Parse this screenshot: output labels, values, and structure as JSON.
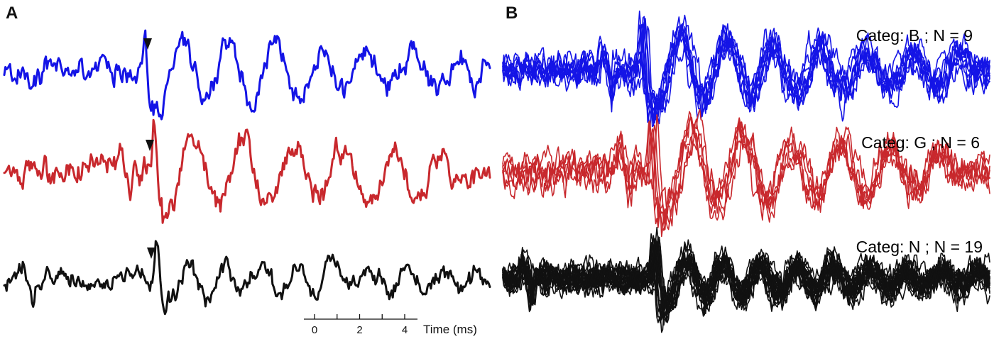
{
  "panels": {
    "left_label": "A",
    "right_label": "B"
  },
  "colors": {
    "B": "#1414e6",
    "G": "#c8282d",
    "N": "#111111",
    "axis": "#111111"
  },
  "categories": [
    {
      "key": "B",
      "label": "Categ: B ; N  = 9"
    },
    {
      "key": "G",
      "label": "Categ: G ; N  =  6"
    },
    {
      "key": "N",
      "label": "Categ: N ; N  = 19"
    }
  ],
  "time_axis": {
    "label": "Time (ms)",
    "ticks": [
      {
        "value": 0,
        "label": "0"
      },
      {
        "value": 1,
        "label": ""
      },
      {
        "value": 2,
        "label": "2"
      },
      {
        "value": 3,
        "label": ""
      },
      {
        "value": 4,
        "label": "4"
      }
    ]
  },
  "chart_data": {
    "type": "line",
    "title": "",
    "xlabel": "Time (ms)",
    "ylabel": "",
    "xticks": [
      0,
      2,
      4
    ],
    "grid": false,
    "panels": [
      {
        "label": "A",
        "description_type": "single representative waveform per category",
        "marker": "arrowhead above each trace near the waveform onset",
        "series": [
          {
            "category": "B",
            "color": "#1414e6"
          },
          {
            "category": "G",
            "color": "#c8282d"
          },
          {
            "category": "N",
            "color": "#111111"
          }
        ]
      },
      {
        "label": "B",
        "description_type": "overlaid waveforms per category",
        "series": [
          {
            "category": "B",
            "n": 9,
            "color": "#1414e6"
          },
          {
            "category": "G",
            "n": 6,
            "color": "#c8282d"
          },
          {
            "category": "N",
            "n": 19,
            "color": "#111111"
          }
        ]
      }
    ]
  }
}
